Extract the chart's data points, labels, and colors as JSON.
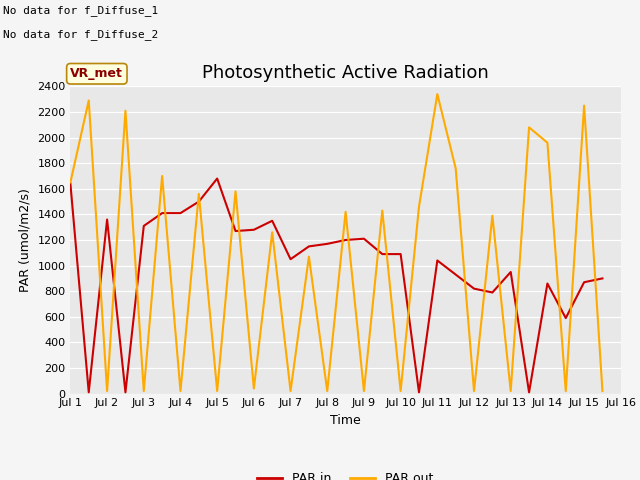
{
  "title": "Photosynthetic Active Radiation",
  "ylabel": "PAR (umol/m2/s)",
  "xlabel": "Time",
  "annotation_line1": "No data for f_Diffuse_1",
  "annotation_line2": "No data for f_Diffuse_2",
  "legend_label": "VR_met",
  "ylim": [
    0,
    2400
  ],
  "xlim": [
    1,
    16
  ],
  "plot_bg": "#e8e8e8",
  "fig_bg": "#f5f5f5",
  "x_ticks": [
    1,
    2,
    3,
    4,
    5,
    6,
    7,
    8,
    9,
    10,
    11,
    12,
    13,
    14,
    15,
    16
  ],
  "x_tick_labels": [
    "Jul 1",
    "Jul 2",
    "Jul 3",
    "Jul 4",
    "Jul 5",
    "Jul 6",
    "Jul 7",
    "Jul 8",
    "Jul 9",
    "Jul 10",
    "Jul 11",
    "Jul 12",
    "Jul 13",
    "Jul 14",
    "Jul 15",
    "Jul 16"
  ],
  "y_ticks": [
    0,
    200,
    400,
    600,
    800,
    1000,
    1200,
    1400,
    1600,
    1800,
    2000,
    2200,
    2400
  ],
  "par_in_x": [
    1,
    1.5,
    2,
    2.5,
    3,
    3.5,
    4,
    4.5,
    5,
    5.5,
    6,
    6.5,
    7,
    7.5,
    8,
    8.5,
    9,
    9.5,
    10,
    10.5,
    11,
    11.5,
    12,
    12.5,
    13,
    13.5,
    14,
    14.5,
    15,
    15.5
  ],
  "par_in_y": [
    1640,
    10,
    1360,
    10,
    1310,
    1410,
    1410,
    1500,
    1680,
    1270,
    1280,
    1350,
    1050,
    1150,
    1170,
    1200,
    1210,
    1090,
    1090,
    10,
    1040,
    930,
    820,
    790,
    950,
    10,
    860,
    590,
    870,
    900
  ],
  "par_out_x": [
    1,
    1.5,
    2,
    2.5,
    3,
    3.5,
    4,
    4.5,
    5,
    5.5,
    6,
    6.5,
    7,
    7.5,
    8,
    8.5,
    9,
    9.5,
    10,
    10.5,
    11,
    11.5,
    12,
    12.5,
    13,
    13.5,
    14,
    14.5,
    15,
    15.5
  ],
  "par_out_y": [
    1650,
    2290,
    20,
    2210,
    20,
    1700,
    20,
    1560,
    20,
    1580,
    40,
    1260,
    20,
    1070,
    20,
    1420,
    20,
    1430,
    20,
    1460,
    2340,
    1760,
    20,
    1390,
    20,
    2080,
    1960,
    20,
    2250,
    20
  ],
  "par_in_color": "#cc0000",
  "par_out_color": "#ffaa00",
  "line_width": 1.5,
  "title_fontsize": 13,
  "label_fontsize": 9,
  "tick_fontsize": 8,
  "annot_fontsize": 8
}
